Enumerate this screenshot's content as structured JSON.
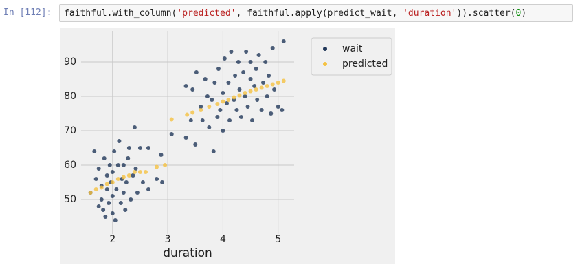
{
  "prompt": "In [112]:",
  "code": [
    "faithful.with_column(",
    "'predicted'",
    ", faithful.apply(predict_wait, ",
    "'duration'",
    ")).scatter(",
    "0",
    ")"
  ],
  "chart_data": {
    "type": "scatter",
    "xlabel": "duration",
    "xlim": [
      1.43,
      5.29
    ],
    "ylim": [
      40,
      99
    ],
    "xticks": [
      2,
      3,
      4,
      5
    ],
    "yticks": [
      50,
      60,
      70,
      80,
      90
    ],
    "grid": true,
    "legend": "outside-upper-right",
    "series": [
      {
        "name": "wait",
        "color": "#22385a",
        "x": [
          1.6,
          1.67,
          1.7,
          1.75,
          1.75,
          1.8,
          1.8,
          1.83,
          1.85,
          1.87,
          1.9,
          1.9,
          1.93,
          1.95,
          1.97,
          2.0,
          2.0,
          2.0,
          2.03,
          2.05,
          2.07,
          2.1,
          2.12,
          2.15,
          2.17,
          2.2,
          2.2,
          2.23,
          2.25,
          2.28,
          2.3,
          2.33,
          2.37,
          2.4,
          2.42,
          2.45,
          2.5,
          2.55,
          2.65,
          2.65,
          2.8,
          2.88,
          2.9,
          3.07,
          3.33,
          3.33,
          3.42,
          3.45,
          3.5,
          3.52,
          3.6,
          3.63,
          3.68,
          3.72,
          3.75,
          3.8,
          3.83,
          3.85,
          3.9,
          3.92,
          3.95,
          4.0,
          4.0,
          4.03,
          4.07,
          4.1,
          4.12,
          4.15,
          4.2,
          4.22,
          4.25,
          4.28,
          4.3,
          4.33,
          4.37,
          4.4,
          4.42,
          4.45,
          4.5,
          4.5,
          4.53,
          4.57,
          4.6,
          4.62,
          4.65,
          4.7,
          4.73,
          4.77,
          4.8,
          4.83,
          4.87,
          4.9,
          4.93,
          5.0,
          5.07,
          5.1
        ],
        "values": [
          52,
          64,
          56,
          59,
          48,
          54,
          50,
          47,
          62,
          45,
          53,
          57,
          49,
          60,
          55,
          51,
          58,
          46,
          64,
          44,
          53,
          60,
          67,
          49,
          56,
          60,
          52,
          47,
          55,
          62,
          65,
          50,
          57,
          71,
          59,
          52,
          65,
          55,
          65,
          53,
          56,
          63,
          55,
          69,
          83,
          68,
          73,
          82,
          66,
          87,
          77,
          73,
          85,
          80,
          71,
          79,
          64,
          84,
          74,
          88,
          76,
          81,
          70,
          91,
          78,
          84,
          73,
          93,
          79,
          86,
          76,
          90,
          82,
          74,
          87,
          80,
          93,
          77,
          85,
          90,
          73,
          83,
          88,
          79,
          92,
          76,
          84,
          90,
          80,
          86,
          75,
          94,
          82,
          77,
          76,
          96
        ]
      },
      {
        "name": "predicted",
        "color": "#f5c242",
        "x": [
          1.6,
          1.7,
          1.8,
          1.9,
          2.0,
          2.1,
          2.2,
          2.3,
          2.4,
          2.5,
          2.6,
          2.8,
          2.95,
          3.07,
          3.35,
          3.45,
          3.6,
          3.75,
          3.9,
          4.0,
          4.1,
          4.2,
          4.3,
          4.4,
          4.5,
          4.6,
          4.7,
          4.8,
          4.9,
          5.0,
          5.1
        ],
        "values": [
          52,
          53,
          53.5,
          54.5,
          55,
          56,
          56.5,
          57,
          58,
          58,
          58,
          59.5,
          60,
          73.3,
          74.7,
          75.3,
          76,
          77,
          77.8,
          78.5,
          79,
          79.7,
          80.3,
          81,
          81.5,
          82,
          82.5,
          83,
          83.5,
          84,
          84.5
        ]
      }
    ]
  }
}
